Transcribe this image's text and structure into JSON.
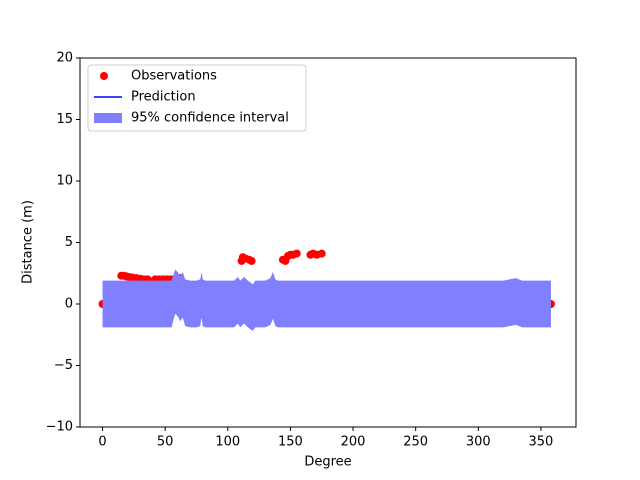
{
  "chart_data": {
    "type": "line",
    "xlabel": "Degree",
    "ylabel": "Distance (m)",
    "xlim": [
      -18,
      378
    ],
    "ylim": [
      -10,
      20
    ],
    "xticks": [
      0,
      50,
      100,
      150,
      200,
      250,
      300,
      350
    ],
    "yticks": [
      {
        "value": -10,
        "label": "−10"
      },
      {
        "value": -5,
        "label": "−5"
      },
      0,
      5,
      10,
      15,
      20
    ],
    "legend": "upper left",
    "series": [
      {
        "name": "Observations",
        "type": "scatter",
        "color": "#ff0000",
        "x": [
          0,
          2,
          4,
          6,
          8,
          10,
          12,
          13,
          14,
          15,
          17,
          19,
          21,
          24,
          27,
          30,
          33,
          36,
          40,
          42,
          45,
          48,
          51,
          54,
          57,
          60,
          62,
          64,
          66,
          68,
          72,
          76,
          80,
          84,
          88,
          92,
          96,
          100,
          104,
          108,
          110,
          111,
          112,
          114,
          117,
          119,
          121,
          124,
          127,
          129,
          131,
          134,
          136,
          138,
          141,
          143,
          144,
          146,
          148,
          150,
          152,
          155,
          156,
          160,
          164,
          166,
          168,
          171,
          175,
          179,
          182,
          185,
          188,
          191,
          194,
          198,
          202,
          206,
          210,
          214,
          218,
          222,
          226,
          230,
          234,
          238,
          242,
          246,
          250,
          254,
          258,
          262,
          266,
          270,
          274,
          278,
          282,
          286,
          288,
          290,
          294,
          298,
          302,
          306,
          310,
          314,
          318,
          321,
          324,
          328,
          332,
          335,
          338,
          341,
          344,
          347,
          350,
          353,
          355,
          358
        ],
        "values": [
          0,
          0,
          0,
          0,
          0,
          0,
          0,
          0.5,
          0.3,
          2.3,
          2.3,
          2.25,
          2.2,
          2.15,
          2.1,
          2.05,
          2.0,
          2.0,
          0,
          2.0,
          2.0,
          2.0,
          2.0,
          2.0,
          2.0,
          2.05,
          2.1,
          0.3,
          0.1,
          0,
          0,
          0,
          0.1,
          0.1,
          0.1,
          0.1,
          0,
          0,
          0,
          0,
          0,
          3.5,
          3.8,
          3.7,
          3.6,
          3.5,
          0.8,
          0.9,
          1.1,
          1.5,
          1.6,
          1.6,
          0.7,
          0,
          0,
          0,
          3.6,
          3.5,
          3.9,
          4.0,
          4.0,
          4.1,
          0,
          0,
          0,
          4.0,
          4.1,
          4.0,
          4.1,
          1.4,
          1.4,
          1.4,
          1.4,
          1.3,
          0,
          0,
          0,
          0,
          0,
          0,
          0,
          0.2,
          0.2,
          0.2,
          0.2,
          0.2,
          0.2,
          0.2,
          0.2,
          0.2,
          0.2,
          0.2,
          0.2,
          0.2,
          0.2,
          0.2,
          0.2,
          0.2,
          0.2,
          0,
          0,
          0,
          0,
          0,
          0,
          0,
          0,
          0.4,
          0,
          0.3,
          0.4,
          0.5,
          0.5,
          0.5,
          0.5,
          0.5,
          0.5,
          0.4,
          0,
          0
        ]
      },
      {
        "name": "Prediction",
        "type": "line",
        "color": "#0000ff",
        "x": [
          0,
          10,
          20,
          30,
          40,
          50,
          55,
          58,
          60,
          62,
          64,
          66,
          70,
          75,
          78,
          79,
          80,
          82,
          90,
          100,
          105,
          108,
          110,
          113,
          116,
          120,
          122,
          125,
          130,
          134,
          136,
          138,
          140,
          150,
          160,
          170,
          180,
          200,
          250,
          300,
          320,
          325,
          330,
          335,
          340,
          350,
          358
        ],
        "values": [
          0,
          0,
          0,
          0,
          0,
          0,
          0,
          1.1,
          0.9,
          0.5,
          0.8,
          0.1,
          0,
          0,
          0.1,
          0.8,
          0.1,
          0,
          0,
          0,
          0,
          0.3,
          0,
          0.3,
          0,
          -0.3,
          0,
          0,
          0,
          0.2,
          0.7,
          0.1,
          0,
          0,
          0,
          0,
          0,
          0,
          0,
          0,
          0,
          0.1,
          0.2,
          0,
          0,
          0,
          0
        ]
      },
      {
        "name": "95% confidence interval",
        "type": "area",
        "color": "#8080ff",
        "x": [
          0,
          10,
          20,
          30,
          40,
          50,
          55,
          58,
          60,
          62,
          64,
          66,
          70,
          75,
          78,
          79,
          80,
          82,
          90,
          100,
          105,
          108,
          110,
          113,
          116,
          120,
          122,
          125,
          130,
          134,
          136,
          138,
          140,
          150,
          160,
          170,
          180,
          200,
          250,
          300,
          320,
          325,
          330,
          335,
          340,
          350,
          358
        ],
        "upper": [
          1.9,
          1.9,
          1.9,
          1.9,
          1.9,
          1.9,
          1.9,
          2.8,
          2.6,
          2.3,
          2.6,
          2.0,
          1.9,
          1.9,
          2.0,
          2.6,
          2.0,
          1.9,
          1.9,
          1.9,
          1.9,
          2.2,
          1.9,
          2.2,
          1.9,
          1.6,
          1.9,
          1.9,
          1.9,
          2.1,
          2.6,
          2.0,
          1.9,
          1.9,
          1.9,
          1.9,
          1.9,
          1.9,
          1.9,
          1.9,
          1.9,
          2.0,
          2.1,
          1.9,
          1.9,
          1.9,
          1.9
        ],
        "lower": [
          -1.9,
          -1.9,
          -1.9,
          -1.9,
          -1.9,
          -1.9,
          -1.9,
          -0.8,
          -1.0,
          -1.4,
          -1.1,
          -1.8,
          -1.9,
          -1.9,
          -1.8,
          -1.1,
          -1.8,
          -1.9,
          -1.9,
          -1.9,
          -1.9,
          -1.6,
          -1.9,
          -1.6,
          -1.9,
          -2.2,
          -1.9,
          -1.9,
          -1.9,
          -1.7,
          -1.2,
          -1.8,
          -1.9,
          -1.9,
          -1.9,
          -1.9,
          -1.9,
          -1.9,
          -1.9,
          -1.9,
          -1.9,
          -1.8,
          -1.7,
          -1.9,
          -1.9,
          -1.9,
          -1.9
        ]
      }
    ]
  }
}
